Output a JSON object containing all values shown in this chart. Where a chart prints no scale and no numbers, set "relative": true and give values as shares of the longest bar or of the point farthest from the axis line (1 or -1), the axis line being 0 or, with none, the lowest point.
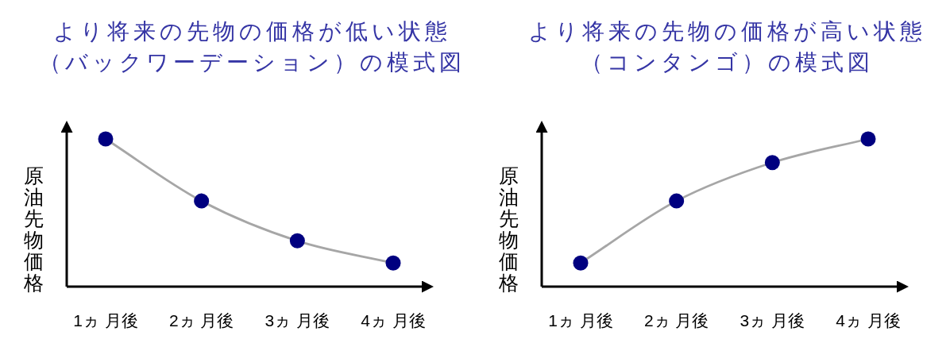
{
  "chart_data": [
    {
      "type": "line",
      "title": "より将来の先物の価格が低い状態（バックワーデーション）の模式図",
      "ylabel": "原油先物価格",
      "categories": [
        "1ヵ 月後",
        "2ヵ 月後",
        "3ヵ 月後",
        "4ヵ 月後"
      ],
      "relative": true,
      "marker": "circle",
      "series": [
        {
          "color": "#a6a6a6",
          "colors": [
            "#000080",
            "#000080",
            "#000080",
            "#000080"
          ],
          "values": [
            1,
            0.58,
            0.31,
            0.16
          ]
        }
      ]
    },
    {
      "type": "line",
      "title": "より将来の先物の価格が高い状態（コンタンゴ）の模式図",
      "ylabel": "原油先物価格",
      "categories": [
        "1ヵ 月後",
        "2ヵ 月後",
        "3ヵ 月後",
        "4ヵ 月後"
      ],
      "relative": true,
      "marker": "circle",
      "series": [
        {
          "color": "#a6a6a6",
          "colors": [
            "#000080",
            "#000080",
            "#000080",
            "#000080"
          ],
          "values": [
            0.16,
            0.58,
            0.84,
            1
          ]
        }
      ]
    }
  ]
}
